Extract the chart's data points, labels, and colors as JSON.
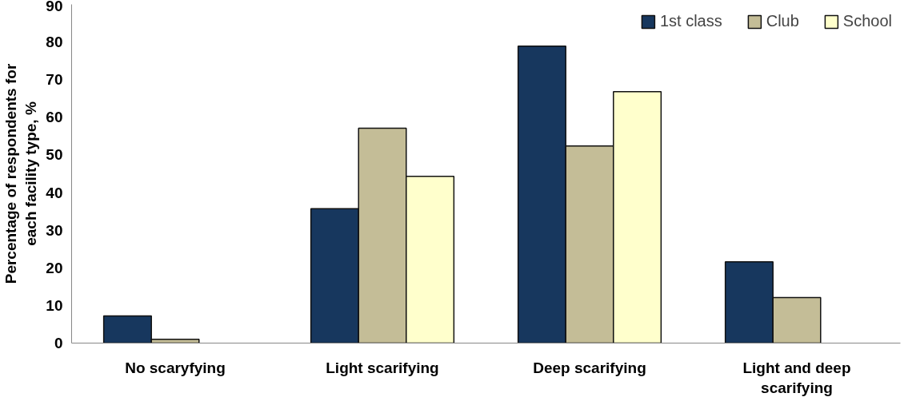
{
  "chart_data": {
    "type": "bar",
    "ylabel": "Percentage of respondents for each facility type, %",
    "categories": [
      "No scaryfying",
      "Light scarifying",
      "Deep scarifying",
      "Light and deep scarifying"
    ],
    "series": [
      {
        "name": "1st class",
        "color": "#17375e",
        "values": [
          7.2,
          35.7,
          78.9,
          21.6
        ]
      },
      {
        "name": "Club",
        "color": "#c4bd97",
        "values": [
          1,
          57.1,
          52.4,
          12.1
        ]
      },
      {
        "name": "School",
        "color": "#ffffcc",
        "values": [
          null,
          44.3,
          66.8,
          null
        ]
      }
    ],
    "ylim": [
      0,
      90
    ],
    "yticks": [
      0,
      10,
      20,
      30,
      40,
      50,
      60,
      70,
      80,
      90
    ],
    "grid": false,
    "legend": "top right"
  }
}
